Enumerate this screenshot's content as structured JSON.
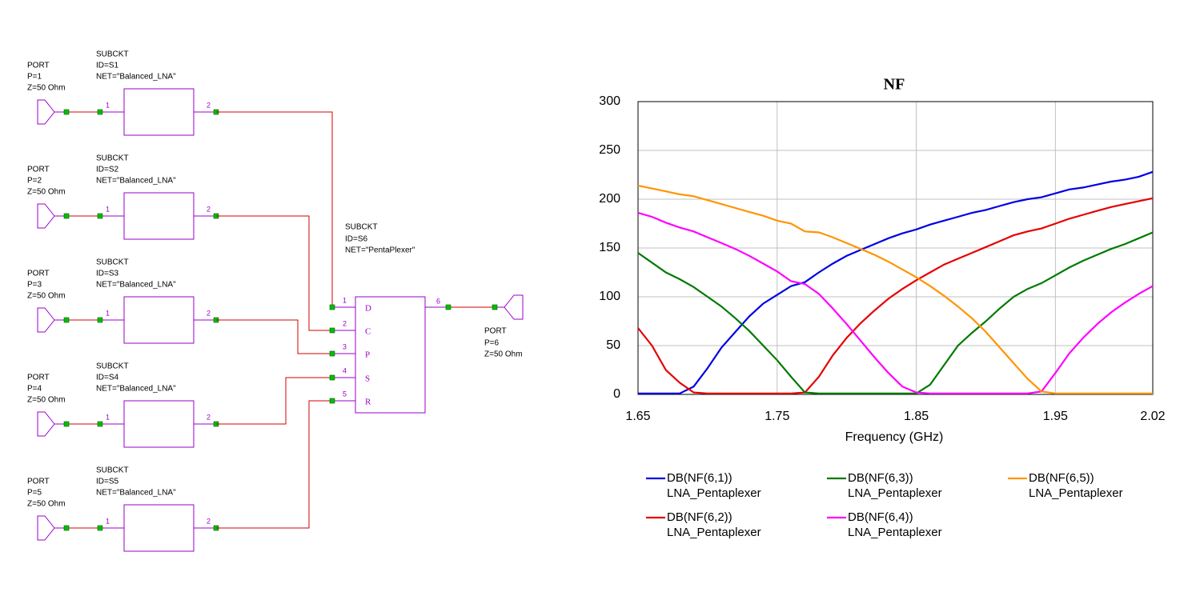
{
  "schematic": {
    "ports": [
      {
        "label": "PORT",
        "number": "P=1",
        "impedance": "Z=50 Ohm"
      },
      {
        "label": "PORT",
        "number": "P=2",
        "impedance": "Z=50 Ohm"
      },
      {
        "label": "PORT",
        "number": "P=3",
        "impedance": "Z=50 Ohm"
      },
      {
        "label": "PORT",
        "number": "P=4",
        "impedance": "Z=50 Ohm"
      },
      {
        "label": "PORT",
        "number": "P=5",
        "impedance": "Z=50 Ohm"
      },
      {
        "label": "PORT",
        "number": "P=6",
        "impedance": "Z=50 Ohm"
      }
    ],
    "lna_blocks": [
      {
        "label": "SUBCKT",
        "id": "ID=S1",
        "net": "NET=\"Balanced_LNA\"",
        "pins": [
          "1",
          "2"
        ]
      },
      {
        "label": "SUBCKT",
        "id": "ID=S2",
        "net": "NET=\"Balanced_LNA\"",
        "pins": [
          "1",
          "2"
        ]
      },
      {
        "label": "SUBCKT",
        "id": "ID=S3",
        "net": "NET=\"Balanced_LNA\"",
        "pins": [
          "1",
          "2"
        ]
      },
      {
        "label": "SUBCKT",
        "id": "ID=S4",
        "net": "NET=\"Balanced_LNA\"",
        "pins": [
          "1",
          "2"
        ]
      },
      {
        "label": "SUBCKT",
        "id": "ID=S5",
        "net": "NET=\"Balanced_LNA\"",
        "pins": [
          "1",
          "2"
        ]
      }
    ],
    "pentaplexer": {
      "label": "SUBCKT",
      "id": "ID=S6",
      "net": "NET=\"PentaPlexer\"",
      "input_pins": [
        "1",
        "2",
        "3",
        "4",
        "5"
      ],
      "port_letters": [
        "D",
        "C",
        "P",
        "S",
        "R"
      ],
      "output_pin": "6"
    }
  },
  "chart_data": {
    "type": "line",
    "title": "NF",
    "x_label": "Frequency (GHz)",
    "x": [
      1.65,
      1.66,
      1.67,
      1.68,
      1.69,
      1.7,
      1.71,
      1.72,
      1.73,
      1.74,
      1.75,
      1.76,
      1.77,
      1.78,
      1.79,
      1.8,
      1.81,
      1.82,
      1.83,
      1.84,
      1.85,
      1.86,
      1.87,
      1.88,
      1.89,
      1.9,
      1.91,
      1.92,
      1.93,
      1.94,
      1.95,
      1.96,
      1.97,
      1.98,
      1.99,
      2.0,
      2.01,
      2.02
    ],
    "xlim": [
      1.65,
      2.02
    ],
    "xticks": [
      1.65,
      1.75,
      1.85,
      1.95,
      2.02
    ],
    "ylim": [
      0,
      300
    ],
    "yticks": [
      0,
      50,
      100,
      150,
      200,
      250,
      300
    ],
    "grid": true,
    "series": [
      {
        "name": "DB(NF(6,1))",
        "source": "LNA_Pentaplexer",
        "color": "#0000e6",
        "values": [
          1,
          1,
          1,
          1,
          8,
          27,
          48,
          64,
          80,
          93,
          102,
          111,
          115,
          125,
          134,
          142,
          148,
          154,
          160,
          165,
          169,
          174,
          178,
          182,
          186,
          189,
          193,
          197,
          200,
          202,
          206,
          210,
          212,
          215,
          218,
          220,
          223,
          228
        ]
      },
      {
        "name": "DB(NF(6,2))",
        "source": "LNA_Pentaplexer",
        "color": "#e60000",
        "values": [
          68,
          50,
          25,
          12,
          2,
          1,
          1,
          1,
          1,
          1,
          1,
          1,
          2,
          18,
          40,
          58,
          73,
          86,
          98,
          108,
          117,
          125,
          133,
          139,
          145,
          151,
          157,
          163,
          167,
          170,
          175,
          180,
          184,
          188,
          192,
          195,
          198,
          201
        ]
      },
      {
        "name": "DB(NF(6,3))",
        "source": "LNA_Pentaplexer",
        "color": "#007a00",
        "values": [
          145,
          135,
          125,
          118,
          110,
          100,
          90,
          78,
          65,
          50,
          35,
          18,
          2,
          1,
          1,
          1,
          1,
          1,
          1,
          1,
          1,
          10,
          30,
          50,
          63,
          75,
          88,
          100,
          108,
          114,
          122,
          130,
          137,
          143,
          149,
          154,
          160,
          166
        ]
      },
      {
        "name": "DB(NF(6,4))",
        "source": "LNA_Pentaplexer",
        "color": "#ff00ff",
        "values": [
          186,
          182,
          176,
          171,
          167,
          161,
          155,
          149,
          142,
          134,
          126,
          116,
          113,
          103,
          88,
          72,
          55,
          38,
          22,
          8,
          2,
          1,
          1,
          1,
          1,
          1,
          1,
          1,
          1,
          3,
          22,
          42,
          58,
          72,
          84,
          94,
          103,
          111
        ]
      },
      {
        "name": "DB(NF(6,5))",
        "source": "LNA_Pentaplexer",
        "color": "#ff9400",
        "values": [
          214,
          211,
          208,
          205,
          203,
          199,
          195,
          191,
          187,
          183,
          178,
          175,
          167,
          166,
          161,
          155,
          149,
          143,
          136,
          128,
          120,
          111,
          101,
          90,
          78,
          64,
          48,
          32,
          16,
          3,
          1,
          1,
          1,
          1,
          1,
          1,
          1,
          1
        ]
      }
    ]
  }
}
